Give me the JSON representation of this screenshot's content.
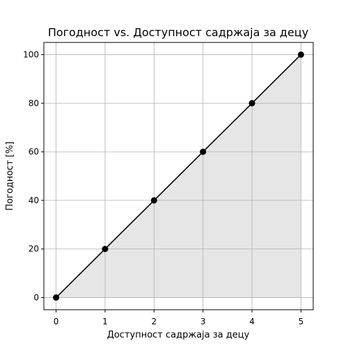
{
  "chart_data": {
    "type": "area",
    "title": "Погодност vs. Доступност садржаја за децу",
    "xlabel": "Доступност садржаја за децу",
    "ylabel": "Погодност [%]",
    "x": [
      0,
      1,
      2,
      3,
      4,
      5
    ],
    "y": [
      0,
      20,
      40,
      60,
      80,
      100
    ],
    "xlim": [
      -0.25,
      5.25
    ],
    "ylim": [
      -5,
      105
    ],
    "xticks": [
      0,
      1,
      2,
      3,
      4,
      5
    ],
    "yticks": [
      0,
      20,
      40,
      60,
      80,
      100
    ],
    "grid": true,
    "colors": {
      "line": "#000000",
      "marker": "#000000",
      "fill": "#e6e6e6",
      "grid": "#b0b0b0"
    }
  }
}
